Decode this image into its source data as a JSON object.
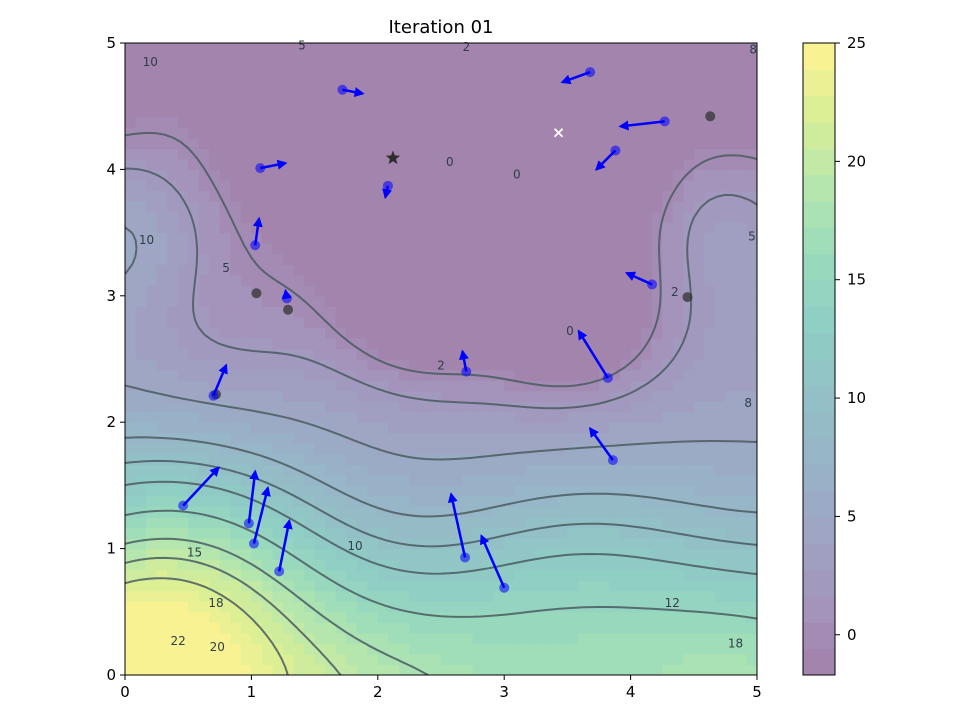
{
  "chart_data": {
    "type": "contour",
    "title": "Iteration 01",
    "xlim": [
      0,
      5
    ],
    "ylim": [
      0,
      5
    ],
    "x_ticks": [
      "0",
      "1",
      "2",
      "3",
      "4",
      "5"
    ],
    "y_ticks": [
      "0",
      "1",
      "2",
      "3",
      "4",
      "5"
    ],
    "grid": false,
    "colorbar": {
      "range": [
        -1.7,
        25
      ],
      "ticks": [
        "0",
        "5",
        "10",
        "15",
        "20",
        "25"
      ],
      "tick_values": [
        0,
        5,
        10,
        15,
        20,
        25
      ],
      "colormap": "viridis",
      "alpha": 0.5
    },
    "contour_labels": [
      {
        "text": "10",
        "x": 0.2,
        "y": 4.85
      },
      {
        "text": "5",
        "x": 1.4,
        "y": 4.98
      },
      {
        "text": "2",
        "x": 2.7,
        "y": 4.97
      },
      {
        "text": "8",
        "x": 4.97,
        "y": 4.95
      },
      {
        "text": "10",
        "x": 0.17,
        "y": 3.44
      },
      {
        "text": "5",
        "x": 0.8,
        "y": 3.22
      },
      {
        "text": "0",
        "x": 2.57,
        "y": 4.06
      },
      {
        "text": "0",
        "x": 3.1,
        "y": 3.96
      },
      {
        "text": "5",
        "x": 4.96,
        "y": 3.47
      },
      {
        "text": "2",
        "x": 4.35,
        "y": 3.03
      },
      {
        "text": "0",
        "x": 3.52,
        "y": 2.72
      },
      {
        "text": "2",
        "x": 2.5,
        "y": 2.45
      },
      {
        "text": "8",
        "x": 4.93,
        "y": 2.15
      },
      {
        "text": "15",
        "x": 0.55,
        "y": 0.97
      },
      {
        "text": "10",
        "x": 1.82,
        "y": 1.02
      },
      {
        "text": "18",
        "x": 0.72,
        "y": 0.57
      },
      {
        "text": "12",
        "x": 4.33,
        "y": 0.57
      },
      {
        "text": "22",
        "x": 0.42,
        "y": 0.27
      },
      {
        "text": "20",
        "x": 0.73,
        "y": 0.22
      },
      {
        "text": "18",
        "x": 4.83,
        "y": 0.25
      }
    ],
    "particles": [
      {
        "x": 1.72,
        "y": 4.63,
        "dx": 0.16,
        "dy": -0.03
      },
      {
        "x": 1.07,
        "y": 4.01,
        "dx": 0.2,
        "dy": 0.04
      },
      {
        "x": 2.08,
        "y": 3.87,
        "dx": -0.02,
        "dy": -0.09
      },
      {
        "x": 1.03,
        "y": 3.4,
        "dx": 0.03,
        "dy": 0.21
      },
      {
        "x": 1.28,
        "y": 2.98,
        "dx": -0.01,
        "dy": 0.06
      },
      {
        "x": 0.7,
        "y": 2.21,
        "dx": 0.1,
        "dy": 0.24
      },
      {
        "x": 2.7,
        "y": 2.4,
        "dx": -0.03,
        "dy": 0.16
      },
      {
        "x": 3.68,
        "y": 4.77,
        "dx": -0.22,
        "dy": -0.08
      },
      {
        "x": 4.27,
        "y": 4.38,
        "dx": -0.35,
        "dy": -0.04
      },
      {
        "x": 3.88,
        "y": 4.15,
        "dx": -0.15,
        "dy": -0.15
      },
      {
        "x": 4.17,
        "y": 3.09,
        "dx": -0.2,
        "dy": 0.09
      },
      {
        "x": 3.82,
        "y": 2.35,
        "dx": -0.23,
        "dy": 0.37
      },
      {
        "x": 3.86,
        "y": 1.7,
        "dx": -0.18,
        "dy": 0.25
      },
      {
        "x": 0.46,
        "y": 1.34,
        "dx": 0.28,
        "dy": 0.3
      },
      {
        "x": 0.98,
        "y": 1.2,
        "dx": 0.05,
        "dy": 0.41
      },
      {
        "x": 1.02,
        "y": 1.04,
        "dx": 0.11,
        "dy": 0.44
      },
      {
        "x": 1.22,
        "y": 0.82,
        "dx": 0.08,
        "dy": 0.4
      },
      {
        "x": 2.69,
        "y": 0.93,
        "dx": -0.11,
        "dy": 0.5
      },
      {
        "x": 3.0,
        "y": 0.69,
        "dx": -0.18,
        "dy": 0.41
      }
    ],
    "previous_positions": [
      {
        "x": 1.04,
        "y": 3.02
      },
      {
        "x": 1.29,
        "y": 2.89
      },
      {
        "x": 4.63,
        "y": 4.42
      },
      {
        "x": 4.45,
        "y": 2.99
      },
      {
        "x": 0.72,
        "y": 2.22
      }
    ],
    "global_best": {
      "x": 2.12,
      "y": 4.09
    },
    "true_minimum": {
      "x": 3.43,
      "y": 4.29
    }
  }
}
